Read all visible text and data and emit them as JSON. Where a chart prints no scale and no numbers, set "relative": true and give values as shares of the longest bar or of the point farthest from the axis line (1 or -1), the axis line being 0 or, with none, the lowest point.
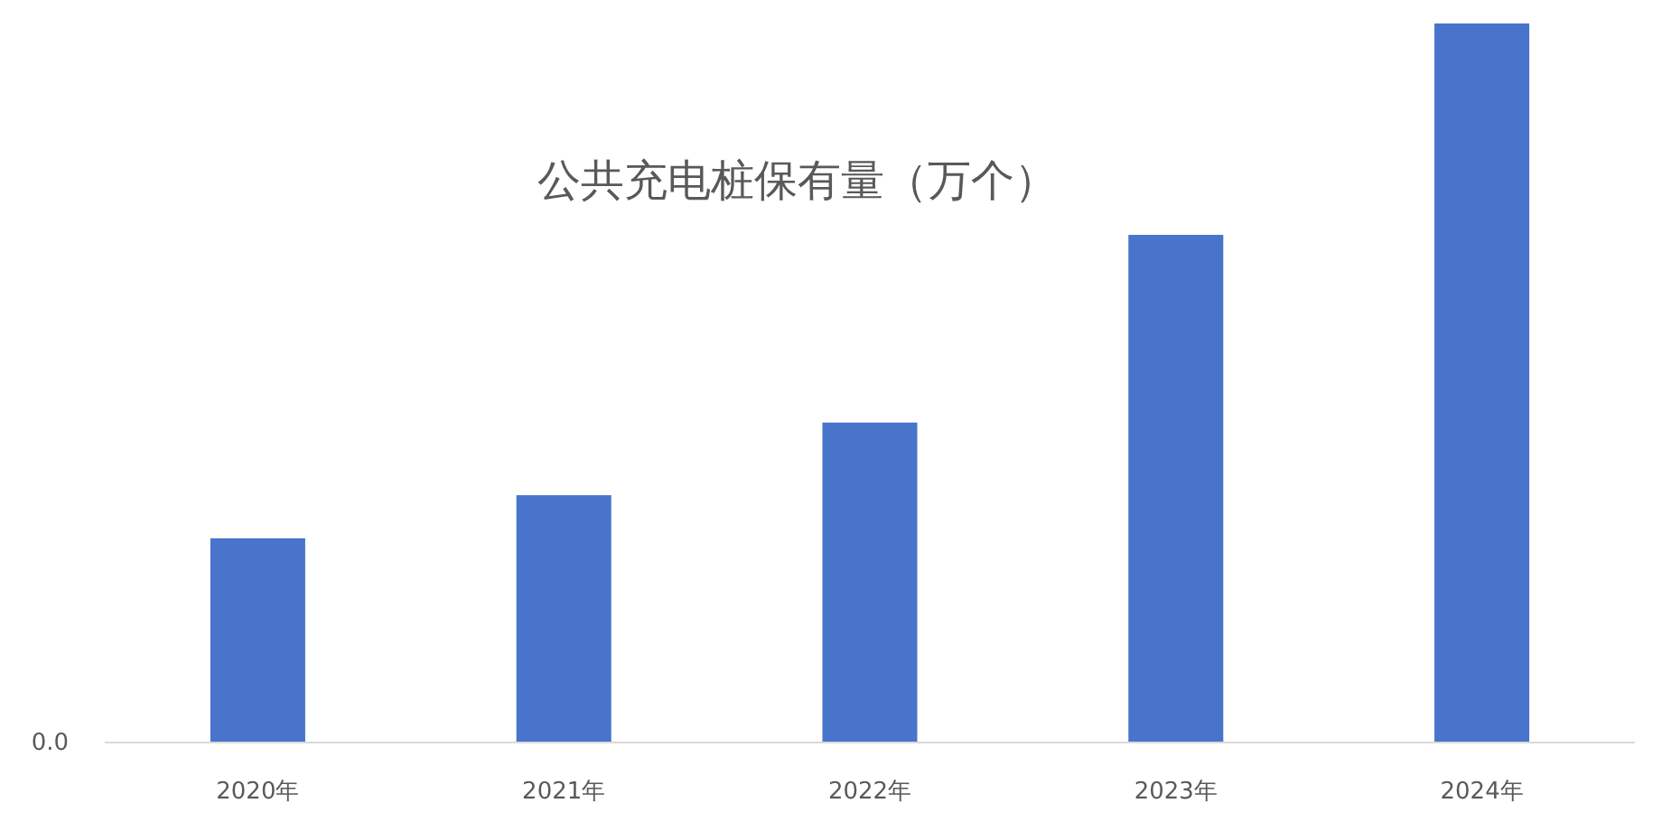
{
  "chart_data": {
    "type": "bar",
    "title": "公共充电桩保有量（万个）",
    "categories": [
      "2020年",
      "2021年",
      "2022年",
      "2023年",
      "2024年"
    ],
    "values": [
      0.284,
      0.344,
      0.445,
      0.706,
      1
    ],
    "color": "#4874cb",
    "relative": true,
    "annotations": [
      "0.0"
    ]
  }
}
